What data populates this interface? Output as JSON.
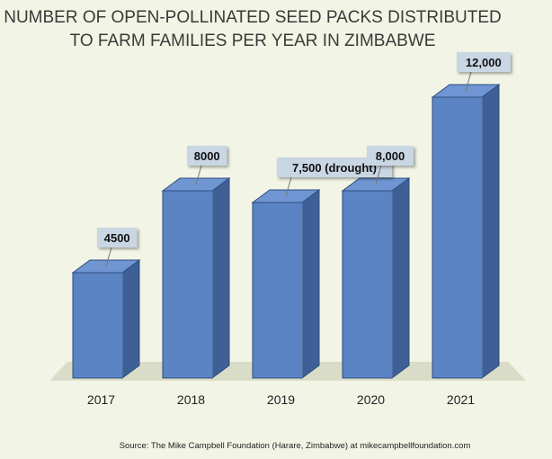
{
  "chart_data": {
    "type": "bar",
    "title_line1": "NUMBER OF OPEN-POLLINATED SEED PACKS DISTRIBUTED",
    "title_line2": "TO FARM FAMILIES PER YEAR IN ZIMBABWE",
    "categories": [
      "2017",
      "2018",
      "2019",
      "2020",
      "2021"
    ],
    "values": [
      4500,
      8000,
      7500,
      8000,
      12000
    ],
    "data_labels": [
      "4500",
      "8000",
      "7,500 (drought)",
      "8,000",
      "12,000"
    ],
    "xlabel": "",
    "ylabel": "",
    "ylim": [
      0,
      12000
    ],
    "grid": false,
    "legend": "none",
    "source": "Source: The Mike Campbell Foundation (Harare, Zimbabwe) at mikecampbellfoundation.com",
    "colors": {
      "background": "#f2f4e6",
      "floor": "#d9dcc6",
      "bar_front": "#5b84c5",
      "bar_side": "#3f6096",
      "bar_top": "#6f95d2",
      "bar_edge": "#2e4d7e",
      "label_box": "#c9d6e3",
      "leader": "#777777"
    }
  }
}
